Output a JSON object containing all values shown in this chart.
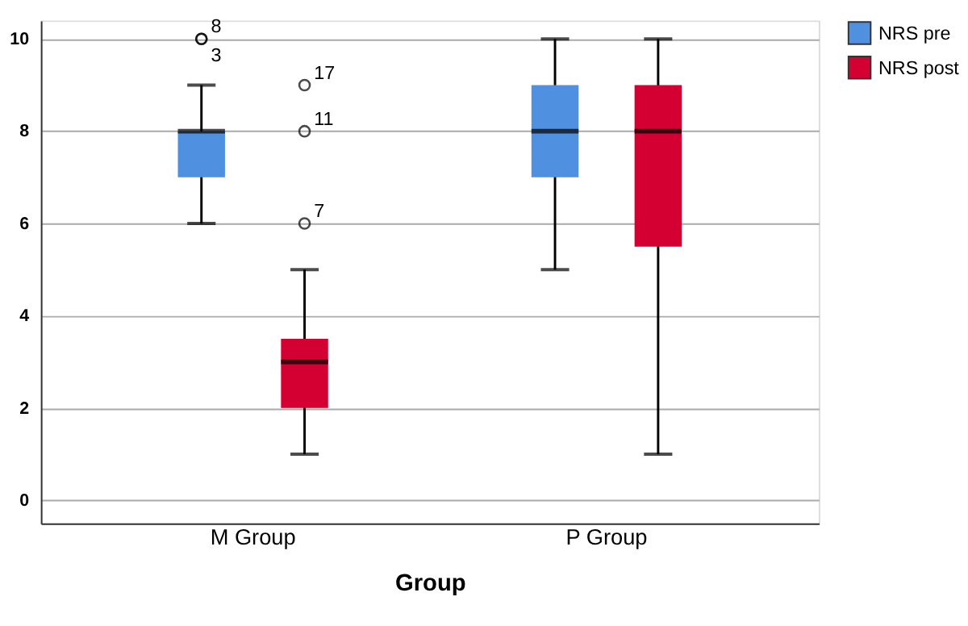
{
  "chart_data": {
    "type": "box",
    "xlabel": "Group",
    "categories": [
      "M Group",
      "P Group"
    ],
    "series": [
      {
        "name": "NRS pre",
        "color": "#5090e0",
        "boxes": [
          {
            "low": 6,
            "q1": 7,
            "median": 8,
            "q3": 8,
            "high": 9,
            "outliers": [
              10,
              10
            ]
          },
          {
            "low": 5,
            "q1": 7,
            "median": 8,
            "q3": 9,
            "high": 10
          }
        ]
      },
      {
        "name": "NRS post",
        "color": "#d50032",
        "boxes": [
          {
            "low": 1,
            "q1": 2,
            "median": 3,
            "q3": 3.5,
            "high": 5,
            "outliers": [
              6,
              8,
              9
            ]
          },
          {
            "low": 1,
            "q1": 5.5,
            "median": 8,
            "q3": 9,
            "high": 10
          }
        ]
      }
    ],
    "ylim": [
      -0.5,
      10.4
    ],
    "yticks": [
      0,
      2,
      4,
      6,
      8,
      10
    ],
    "grid": "y",
    "legend": "top right",
    "annotations": [
      "8",
      "3",
      "7",
      "11",
      "17"
    ]
  }
}
